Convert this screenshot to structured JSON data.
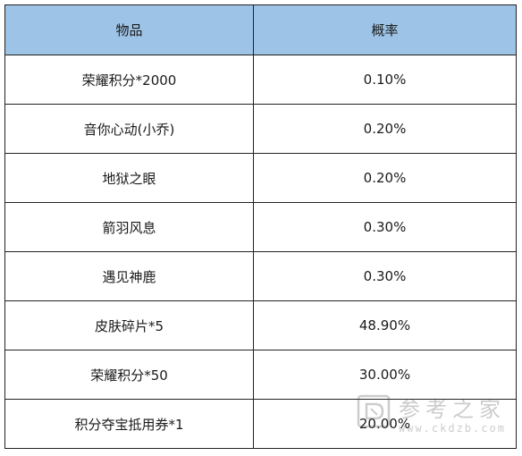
{
  "table": {
    "headers": [
      "物品",
      "概率"
    ],
    "rows": [
      {
        "item": "荣耀积分*2000",
        "prob": "0.10%"
      },
      {
        "item": "音你心动(小乔)",
        "prob": "0.20%"
      },
      {
        "item": "地狱之眼",
        "prob": "0.20%"
      },
      {
        "item": "箭羽风息",
        "prob": "0.30%"
      },
      {
        "item": "遇见神鹿",
        "prob": "0.30%"
      },
      {
        "item": "皮肤碎片*5",
        "prob": "48.90%"
      },
      {
        "item": "荣耀积分*50",
        "prob": "30.00%"
      },
      {
        "item": "积分夺宝抵用券*1",
        "prob": "20.00%"
      }
    ]
  },
  "watermark": {
    "name": "参考之家",
    "url": "www.ckdzb.com"
  },
  "colors": {
    "header_bg": "#9dc3e6",
    "border": "#222222"
  }
}
